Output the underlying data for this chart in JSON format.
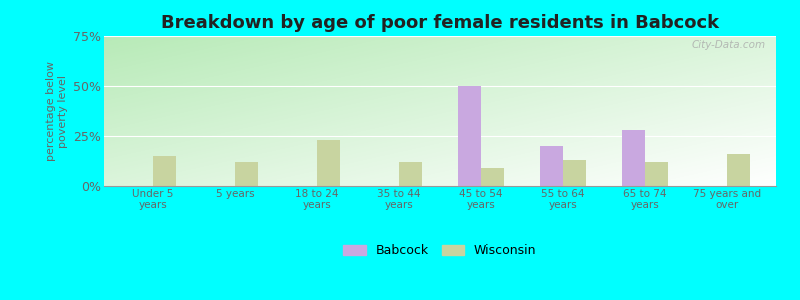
{
  "title": "Breakdown by age of poor female residents in Babcock",
  "categories": [
    "Under 5\nyears",
    "5 years",
    "18 to 24\nyears",
    "35 to 44\nyears",
    "45 to 54\nyears",
    "55 to 64\nyears",
    "65 to 74\nyears",
    "75 years and\nover"
  ],
  "babcock_values": [
    0,
    0,
    0,
    0,
    50,
    20,
    28,
    0
  ],
  "wisconsin_values": [
    15,
    12,
    23,
    12,
    9,
    13,
    12,
    16
  ],
  "babcock_color": "#c9a8e0",
  "wisconsin_color": "#c8d4a0",
  "ylabel": "percentage below\npoverty level",
  "ylim": [
    0,
    75
  ],
  "yticks": [
    0,
    25,
    50,
    75
  ],
  "ytick_labels": [
    "0%",
    "25%",
    "50%",
    "75%"
  ],
  "outer_bg": "#00ffff",
  "title_fontsize": 13,
  "bar_width": 0.28,
  "legend_labels": [
    "Babcock",
    "Wisconsin"
  ],
  "gradient_colors": [
    "#b8e8b0",
    "#eef8ee"
  ],
  "watermark": "City-Data.com"
}
